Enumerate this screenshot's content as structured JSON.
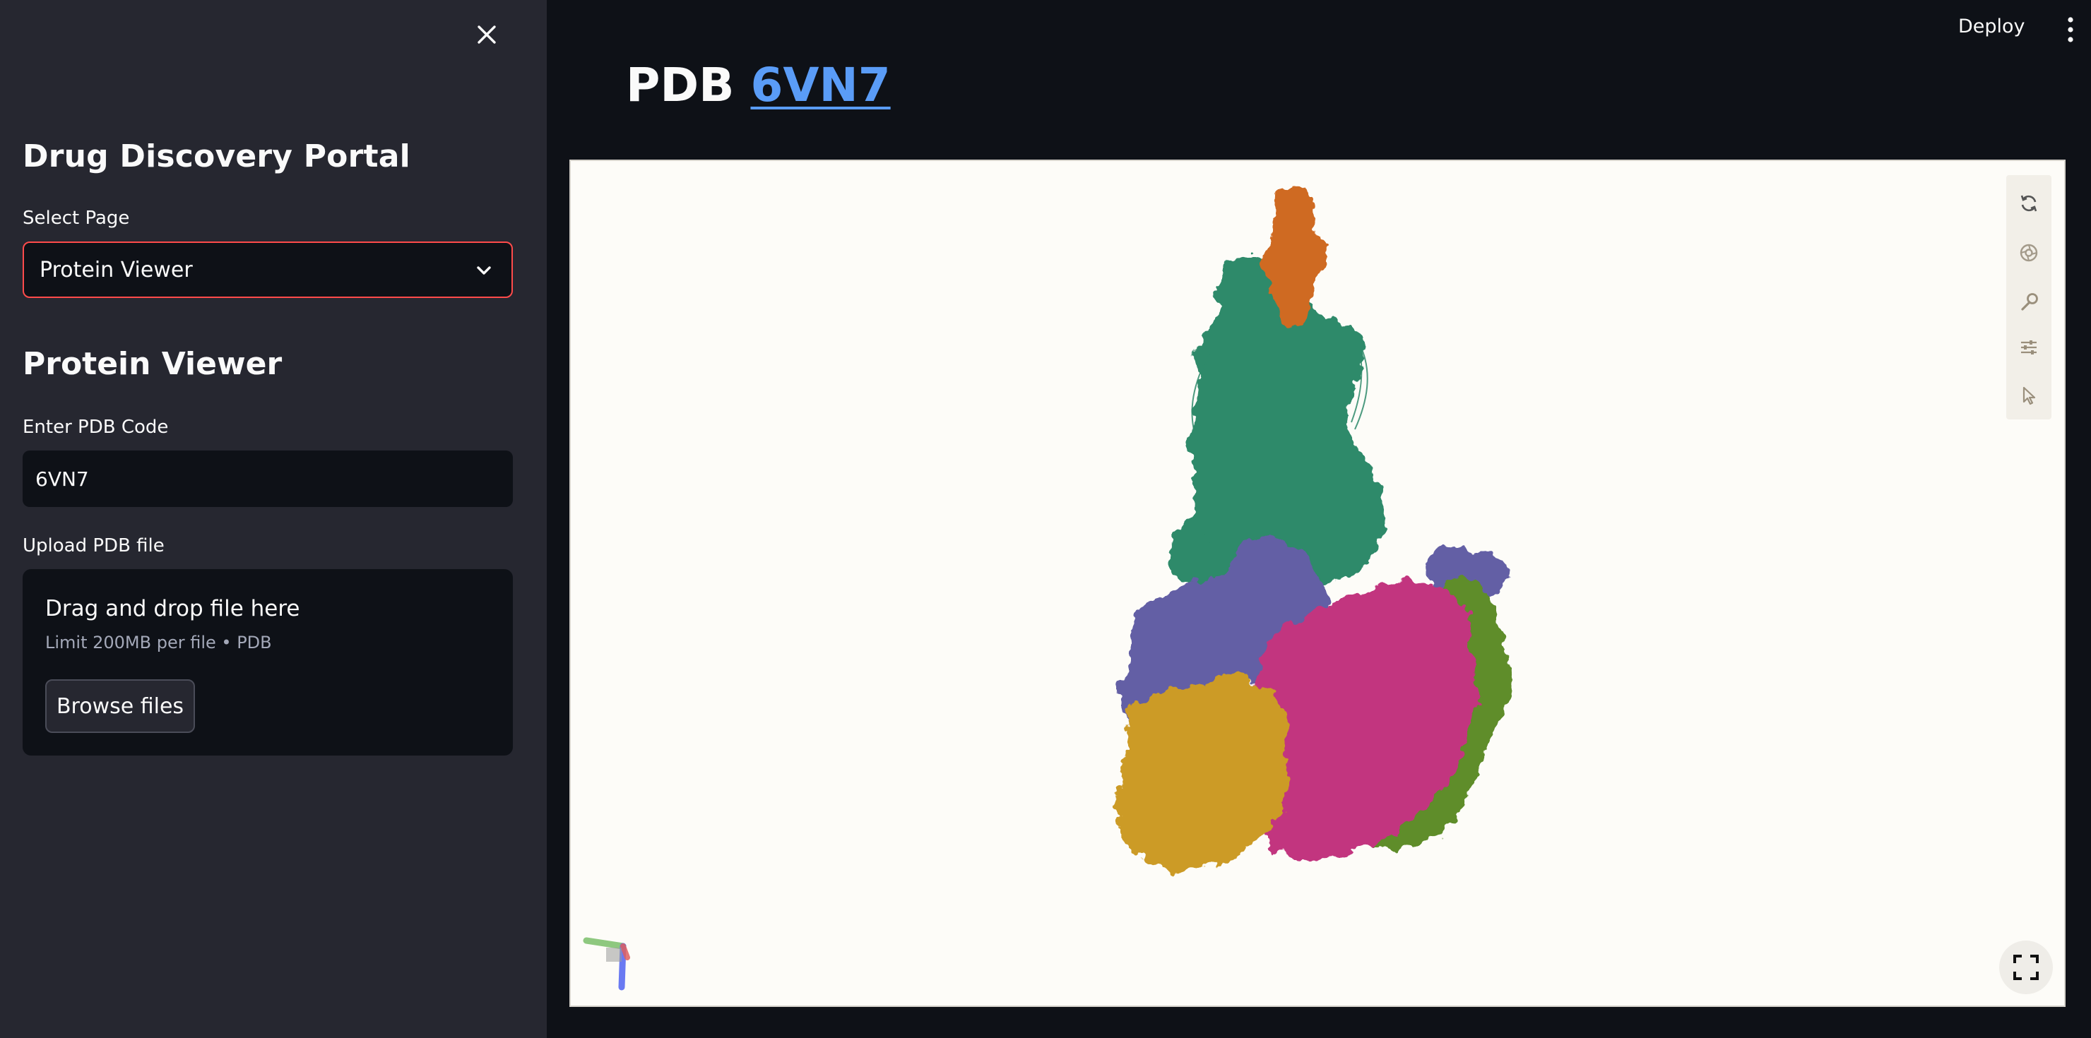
{
  "sidebar": {
    "title": "Drug Discovery Portal",
    "select_label": "Select Page",
    "select_value": "Protein Viewer",
    "section_title": "Protein Viewer",
    "pdb_label": "Enter PDB Code",
    "pdb_value": "6VN7",
    "upload_label": "Upload PDB file",
    "upload_title": "Drag and drop file here",
    "upload_limit": "Limit 200MB per file • PDB",
    "browse_label": "Browse files"
  },
  "header": {
    "deploy_label": "Deploy"
  },
  "main": {
    "title_prefix": "PDB ",
    "title_code": "6VN7"
  },
  "viewer": {
    "tools": [
      "reset-icon",
      "screenshot-icon",
      "wrench-icon",
      "settings-icon",
      "select-cursor-icon"
    ],
    "chain_colors": {
      "orange": "#cf6a21",
      "teal": "#2e8a6a",
      "purple": "#635fa5",
      "magenta": "#c2347f",
      "olive": "#5e8d2a",
      "gold": "#cc9b27"
    },
    "background": "#fdfcf8"
  },
  "colors": {
    "accent": "#ff4b4b",
    "link": "#5a9cf7",
    "sidebar_bg": "#262730",
    "app_bg": "#0e1117"
  }
}
